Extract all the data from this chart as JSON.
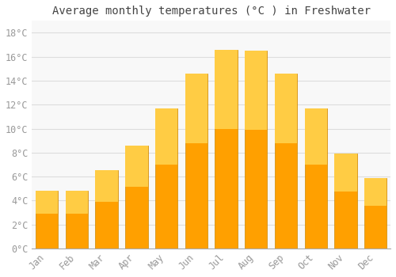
{
  "title": "Average monthly temperatures (°C ) in Freshwater",
  "months": [
    "Jan",
    "Feb",
    "Mar",
    "Apr",
    "May",
    "Jun",
    "Jul",
    "Aug",
    "Sep",
    "Oct",
    "Nov",
    "Dec"
  ],
  "values": [
    4.8,
    4.8,
    6.5,
    8.6,
    11.7,
    14.6,
    16.6,
    16.5,
    14.6,
    11.7,
    7.9,
    5.9
  ],
  "bar_color_top": "#FFCC44",
  "bar_color_bottom": "#FFA000",
  "bar_edge_color": "#CC8800",
  "background_color": "#FFFFFF",
  "plot_bg_color": "#F8F8F8",
  "grid_color": "#DDDDDD",
  "text_color": "#999999",
  "title_color": "#444444",
  "ylim": [
    0,
    19
  ],
  "yticks": [
    0,
    2,
    4,
    6,
    8,
    10,
    12,
    14,
    16,
    18
  ],
  "title_fontsize": 10,
  "tick_fontsize": 8.5,
  "bar_width": 0.75
}
